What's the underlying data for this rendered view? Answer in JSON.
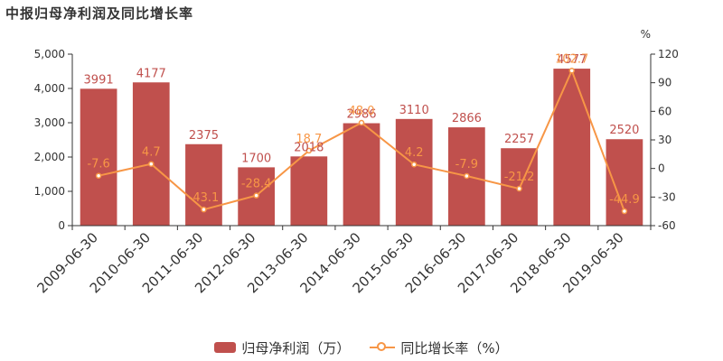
{
  "chart_data": {
    "type": "bar",
    "title": "中报归母净利润及同比增长率",
    "categories": [
      "2009-06-30",
      "2010-06-30",
      "2011-06-30",
      "2012-06-30",
      "2013-06-30",
      "2014-06-30",
      "2015-06-30",
      "2016-06-30",
      "2017-06-30",
      "2018-06-30",
      "2019-06-30"
    ],
    "series": [
      {
        "name": "归母净利润（万）",
        "type": "bar",
        "axis": "left",
        "color": "#c0504d",
        "values": [
          3991,
          4177,
          2375,
          1700,
          2018,
          2986,
          3110,
          2866,
          2257,
          4577,
          2520
        ]
      },
      {
        "name": "同比增长率（%）",
        "type": "line",
        "axis": "right",
        "color": "#f79646",
        "values": [
          -7.6,
          4.7,
          -43.1,
          -28.4,
          18.7,
          48.0,
          4.2,
          -7.9,
          -21.2,
          102.7,
          -44.9
        ],
        "labels": [
          "-7.6",
          "4.7",
          "-43.1",
          "-28.4",
          "18.7",
          "48.0",
          "4.2",
          "-7.9",
          "-21.2",
          "102.7",
          "-44.9"
        ]
      }
    ],
    "y_left": {
      "ylim": [
        0,
        5000
      ],
      "ticks": [
        0,
        1000,
        2000,
        3000,
        4000,
        5000
      ],
      "tick_labels": [
        "0",
        "1,000",
        "2,000",
        "3,000",
        "4,000",
        "5,000"
      ]
    },
    "y_right": {
      "label": "%",
      "ylim": [
        -60,
        120
      ],
      "ticks": [
        -60,
        -30,
        0,
        30,
        60,
        90,
        120
      ],
      "tick_labels": [
        "-60",
        "-30",
        "0",
        "30",
        "60",
        "90",
        "120"
      ]
    },
    "grid": false,
    "legend": "bottom-center"
  }
}
